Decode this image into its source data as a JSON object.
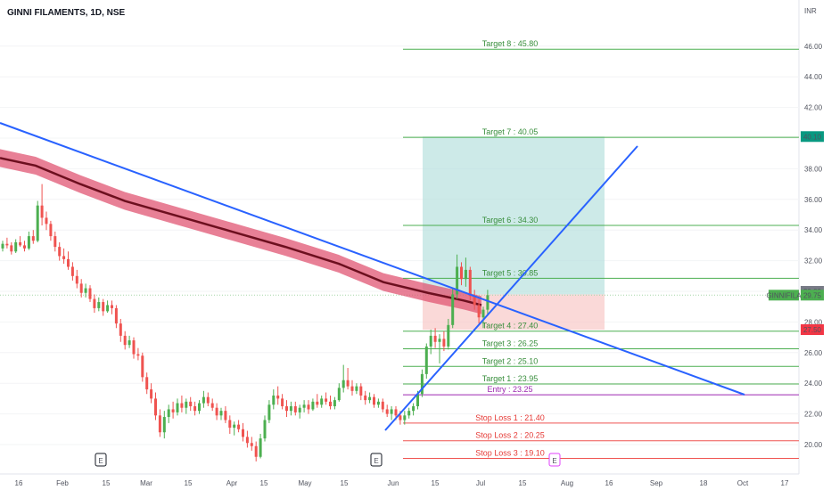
{
  "header": {
    "title": "GINNI FILAMENTS, 1D, NSE",
    "currency": "INR"
  },
  "chart_data": {
    "type": "candlestick",
    "title": "GINNI FILAMENTS, 1D, NSE",
    "currency": "INR",
    "ylim": [
      19,
      47
    ],
    "y_ticks": [
      20,
      22,
      24,
      26,
      28,
      30,
      32,
      34,
      36,
      38,
      40,
      42,
      44,
      46
    ],
    "y_tick_labels": [
      "20.00",
      "22.00",
      "24.00",
      "26.00",
      "28.00",
      "30.00",
      "32.00",
      "34.00",
      "36.00",
      "38.00",
      "40.00",
      "42.00",
      "44.00",
      "46.00"
    ],
    "x_ticks": [
      "16",
      "Feb",
      "15",
      "Mar",
      "15",
      "Apr",
      "15",
      "May",
      "15",
      "Jun",
      "15",
      "Jul",
      "15",
      "Aug",
      "16",
      "Sep",
      "18",
      "Oct",
      "17"
    ],
    "targets": [
      {
        "label": "Target 8 : 45.80",
        "value": 45.8
      },
      {
        "label": "Target 7 : 40.05",
        "value": 40.05
      },
      {
        "label": "Target 6 : 34.30",
        "value": 34.3
      },
      {
        "label": "Target 5 : 30.85",
        "value": 30.85
      },
      {
        "label": "Target 4 : 27.40",
        "value": 27.4
      },
      {
        "label": "Target 3 : 26.25",
        "value": 26.25
      },
      {
        "label": "Target 2 : 25.10",
        "value": 25.1
      },
      {
        "label": "Target 1 : 23.95",
        "value": 23.95
      }
    ],
    "entry": {
      "label": "Entry : 23.25",
      "value": 23.25
    },
    "stop_losses": [
      {
        "label": "Stop Loss 1 : 21.40",
        "value": 21.4
      },
      {
        "label": "Stop Loss 2 : 20.25",
        "value": 20.25
      },
      {
        "label": "Stop Loss 3 : 19.10",
        "value": 19.1
      }
    ],
    "price_tags": [
      {
        "label": "40.10",
        "value": 40.1,
        "color": "#089981"
      },
      {
        "label": "30.00",
        "value": 30.0,
        "color": "#787b86"
      },
      {
        "label": "29.75",
        "value": 29.75,
        "color": "#4caf50",
        "symbol": "GINNIFILA"
      },
      {
        "label": "27.50",
        "value": 27.5,
        "color": "#f23645"
      }
    ],
    "position": {
      "entry": 29.8,
      "stop": 27.5,
      "target": 40.1
    },
    "events": [
      {
        "label": "E",
        "x": "Feb"
      },
      {
        "label": "E",
        "x": "Jun"
      },
      {
        "label": "E",
        "x": "Jul"
      }
    ],
    "colors": {
      "up": "#4caf50",
      "down": "#ef5350",
      "target_line": "#4caf50",
      "stop_line": "#ef5350",
      "entry_line": "#9c27b0",
      "trendline": "#2962ff",
      "ma_band": "#e05673",
      "ma_line": "#6d0f1f",
      "profit_zone": "#b2dfdb",
      "loss_zone": "#f8c9c7"
    },
    "candles": [
      [
        32.8,
        33.3,
        32.6,
        33.1
      ],
      [
        33.1,
        33.5,
        32.8,
        33.0
      ],
      [
        33.0,
        33.2,
        32.4,
        32.6
      ],
      [
        32.6,
        33.4,
        32.5,
        33.2
      ],
      [
        33.2,
        33.6,
        32.9,
        33.0
      ],
      [
        33.0,
        33.3,
        32.6,
        32.8
      ],
      [
        32.8,
        33.9,
        32.7,
        33.6
      ],
      [
        33.6,
        34.0,
        33.1,
        33.3
      ],
      [
        33.3,
        35.9,
        33.2,
        35.6
      ],
      [
        35.6,
        37.0,
        34.3,
        34.8
      ],
      [
        34.8,
        35.2,
        34.0,
        34.4
      ],
      [
        34.4,
        34.6,
        33.3,
        33.6
      ],
      [
        33.6,
        33.9,
        32.6,
        32.9
      ],
      [
        32.9,
        33.2,
        32.0,
        32.3
      ],
      [
        32.3,
        32.8,
        31.8,
        32.1
      ],
      [
        32.1,
        32.6,
        31.4,
        31.6
      ],
      [
        31.6,
        31.9,
        30.7,
        31.0
      ],
      [
        31.0,
        31.4,
        30.2,
        30.5
      ],
      [
        30.5,
        30.8,
        29.6,
        29.9
      ],
      [
        29.9,
        30.5,
        29.6,
        30.2
      ],
      [
        30.2,
        30.4,
        29.3,
        29.5
      ],
      [
        29.5,
        29.8,
        28.6,
        28.9
      ],
      [
        28.9,
        29.6,
        28.7,
        29.3
      ],
      [
        29.3,
        29.5,
        28.4,
        28.7
      ],
      [
        28.7,
        29.4,
        28.6,
        29.1
      ],
      [
        29.1,
        29.4,
        28.5,
        28.9
      ],
      [
        28.9,
        29.1,
        27.6,
        27.9
      ],
      [
        27.9,
        28.2,
        26.7,
        27.1
      ],
      [
        27.1,
        27.4,
        26.2,
        26.5
      ],
      [
        26.5,
        27.1,
        26.3,
        26.8
      ],
      [
        26.8,
        27.0,
        25.6,
        25.9
      ],
      [
        25.9,
        26.3,
        25.5,
        25.8
      ],
      [
        25.8,
        26.0,
        24.1,
        24.4
      ],
      [
        24.4,
        24.7,
        23.3,
        23.6
      ],
      [
        23.6,
        24.0,
        22.7,
        23.0
      ],
      [
        23.0,
        23.4,
        21.6,
        21.9
      ],
      [
        21.9,
        22.3,
        20.5,
        20.8
      ],
      [
        20.8,
        22.2,
        20.4,
        21.8
      ],
      [
        21.8,
        22.6,
        21.4,
        22.3
      ],
      [
        22.3,
        22.8,
        21.7,
        22.1
      ],
      [
        22.1,
        23.0,
        21.9,
        22.7
      ],
      [
        22.7,
        23.2,
        22.1,
        22.4
      ],
      [
        22.4,
        23.0,
        22.0,
        22.8
      ],
      [
        22.8,
        23.1,
        22.2,
        22.5
      ],
      [
        22.5,
        22.8,
        21.9,
        22.2
      ],
      [
        22.2,
        22.9,
        22.0,
        22.7
      ],
      [
        22.7,
        23.5,
        22.4,
        23.1
      ],
      [
        23.1,
        23.4,
        22.5,
        22.7
      ],
      [
        22.7,
        23.0,
        22.2,
        22.4
      ],
      [
        22.4,
        22.7,
        21.6,
        21.9
      ],
      [
        21.9,
        22.4,
        21.6,
        22.2
      ],
      [
        22.2,
        22.5,
        21.4,
        21.6
      ],
      [
        21.6,
        21.9,
        20.7,
        21.1
      ],
      [
        21.1,
        21.5,
        20.6,
        21.3
      ],
      [
        21.3,
        21.6,
        20.8,
        21.0
      ],
      [
        21.0,
        21.4,
        20.2,
        20.5
      ],
      [
        20.5,
        20.9,
        19.8,
        20.1
      ],
      [
        20.1,
        20.5,
        19.6,
        19.9
      ],
      [
        19.9,
        20.2,
        18.9,
        19.2
      ],
      [
        19.2,
        20.7,
        19.1,
        20.4
      ],
      [
        20.4,
        21.9,
        20.2,
        21.6
      ],
      [
        21.6,
        22.9,
        21.4,
        22.6
      ],
      [
        22.6,
        23.6,
        22.3,
        23.2
      ],
      [
        23.2,
        23.8,
        22.6,
        23.0
      ],
      [
        23.0,
        23.3,
        22.3,
        22.5
      ],
      [
        22.5,
        22.9,
        21.8,
        22.2
      ],
      [
        22.2,
        22.8,
        21.9,
        22.5
      ],
      [
        22.5,
        22.8,
        21.9,
        22.1
      ],
      [
        22.1,
        22.6,
        21.7,
        22.4
      ],
      [
        22.4,
        22.9,
        22.1,
        22.6
      ],
      [
        22.6,
        22.9,
        22.0,
        22.3
      ],
      [
        22.3,
        23.0,
        22.2,
        22.8
      ],
      [
        22.8,
        23.3,
        22.4,
        22.6
      ],
      [
        22.6,
        23.2,
        22.4,
        23.0
      ],
      [
        23.0,
        23.4,
        22.6,
        22.8
      ],
      [
        22.8,
        23.2,
        22.3,
        22.5
      ],
      [
        22.5,
        23.1,
        22.3,
        22.9
      ],
      [
        22.9,
        24.0,
        22.8,
        23.7
      ],
      [
        23.7,
        25.2,
        23.4,
        24.2
      ],
      [
        24.2,
        25.0,
        23.6,
        23.8
      ],
      [
        23.8,
        24.2,
        23.2,
        23.5
      ],
      [
        23.5,
        24.0,
        23.3,
        23.8
      ],
      [
        23.8,
        24.0,
        22.9,
        23.2
      ],
      [
        23.2,
        23.5,
        22.6,
        22.9
      ],
      [
        22.9,
        23.4,
        22.7,
        23.1
      ],
      [
        23.1,
        23.3,
        22.4,
        22.6
      ],
      [
        22.6,
        23.0,
        22.4,
        22.8
      ],
      [
        22.8,
        23.0,
        22.1,
        22.3
      ],
      [
        22.3,
        22.6,
        21.8,
        22.0
      ],
      [
        22.0,
        22.5,
        21.6,
        22.3
      ],
      [
        22.3,
        22.5,
        21.6,
        21.9
      ],
      [
        21.9,
        22.2,
        21.3,
        21.6
      ],
      [
        21.6,
        22.2,
        21.3,
        21.9
      ],
      [
        21.9,
        22.4,
        21.7,
        22.2
      ],
      [
        22.2,
        22.7,
        21.9,
        22.5
      ],
      [
        22.5,
        23.5,
        22.3,
        23.3
      ],
      [
        23.3,
        24.9,
        23.1,
        24.6
      ],
      [
        24.6,
        26.6,
        24.3,
        26.4
      ],
      [
        26.4,
        27.5,
        25.9,
        27.1
      ],
      [
        27.1,
        27.6,
        26.3,
        26.7
      ],
      [
        26.7,
        27.2,
        25.3,
        26.9
      ],
      [
        26.9,
        27.4,
        26.1,
        26.4
      ],
      [
        26.4,
        28.2,
        26.2,
        27.8
      ],
      [
        27.8,
        30.2,
        27.6,
        29.8
      ],
      [
        29.8,
        32.4,
        29.5,
        31.6
      ],
      [
        31.6,
        31.9,
        30.4,
        30.8
      ],
      [
        30.8,
        32.2,
        30.3,
        31.4
      ],
      [
        31.4,
        31.6,
        29.4,
        29.7
      ],
      [
        29.7,
        30.1,
        28.8,
        29.1
      ],
      [
        29.1,
        29.5,
        27.9,
        28.3
      ],
      [
        28.3,
        29.0,
        27.6,
        28.8
      ],
      [
        28.8,
        30.1,
        28.4,
        29.75
      ]
    ]
  }
}
